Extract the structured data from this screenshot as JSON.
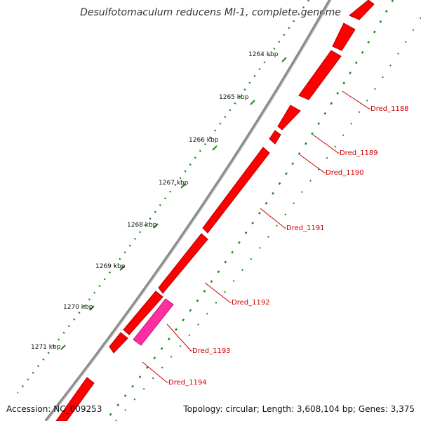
{
  "title": "Desulfotomaculum reducens MI-1, complete genome",
  "accession": "Accession: NC_009253",
  "summary": "Topology: circular; Length: 3,608,104 bp; Genes: 3,375",
  "kbp_labels": [
    "1264 kbp",
    "1265 kbp",
    "1266 kbp",
    "1267 kbp",
    "1268 kbp",
    "1269 kbp",
    "1270 kbp",
    "1271 kbp"
  ],
  "gene_labels": [
    "Dred_1188",
    "Dred_1189",
    "Dred_1190",
    "Dred_1191",
    "Dred_1192",
    "Dred_1193",
    "Dred_1194"
  ],
  "colors": {
    "gene": "#ff0000",
    "gene_highlight": "#ff2fa0",
    "backbone": "#888888",
    "gc_dots": "#1a8a1a",
    "label_text": "#cc0000"
  }
}
